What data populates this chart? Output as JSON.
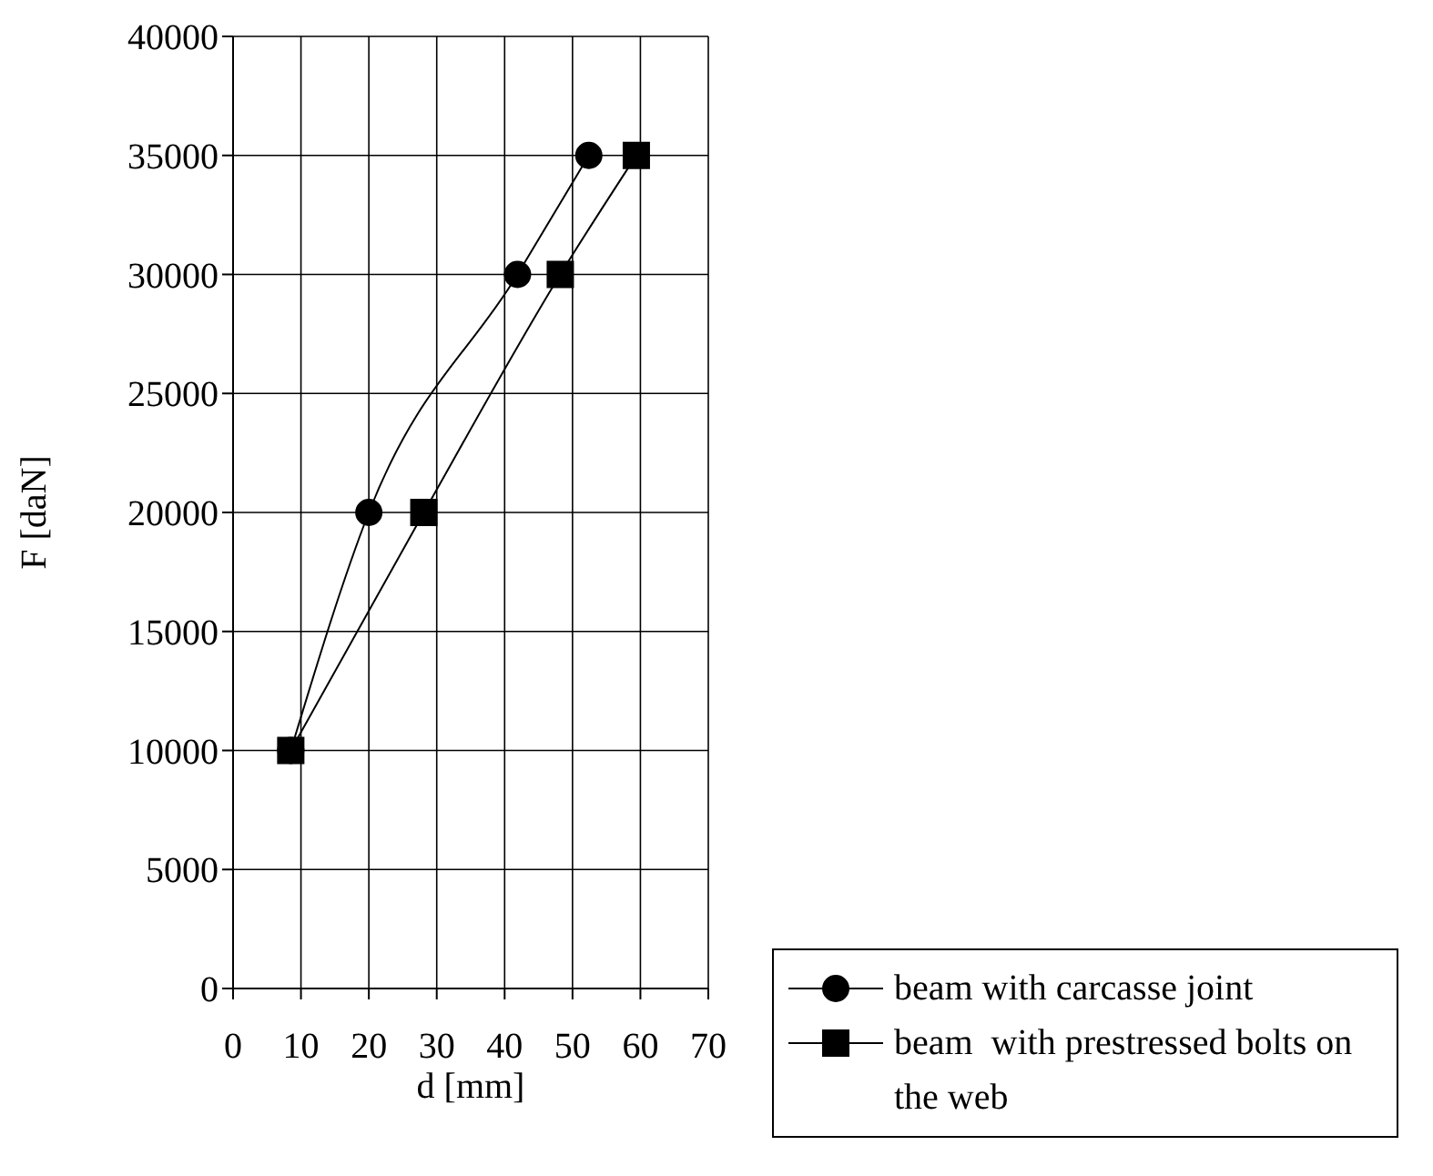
{
  "chart_data": {
    "type": "line",
    "xlabel": "d [mm]",
    "ylabel": "F [daN]",
    "xlim": [
      0,
      70
    ],
    "xticks": [
      0,
      10,
      20,
      30,
      40,
      50,
      60,
      70
    ],
    "ylim": [
      0,
      40000
    ],
    "yticks": [
      0,
      5000,
      10000,
      15000,
      20000,
      25000,
      30000,
      35000,
      40000
    ],
    "grid": true,
    "legend": "bottom right",
    "series": [
      {
        "name": "beam with carcasse joint",
        "color": "#000000",
        "marker": "circle",
        "x": [
          8.5,
          20,
          41.9,
          52.4
        ],
        "values": [
          10000,
          20000,
          30000,
          35000
        ]
      },
      {
        "name": "beam  with prestressed bolts on the web",
        "color": "#000000",
        "marker": "square",
        "x": [
          8.5,
          28.1,
          48.2,
          59.4
        ],
        "values": [
          10000,
          20000,
          30000,
          35000
        ]
      }
    ]
  }
}
